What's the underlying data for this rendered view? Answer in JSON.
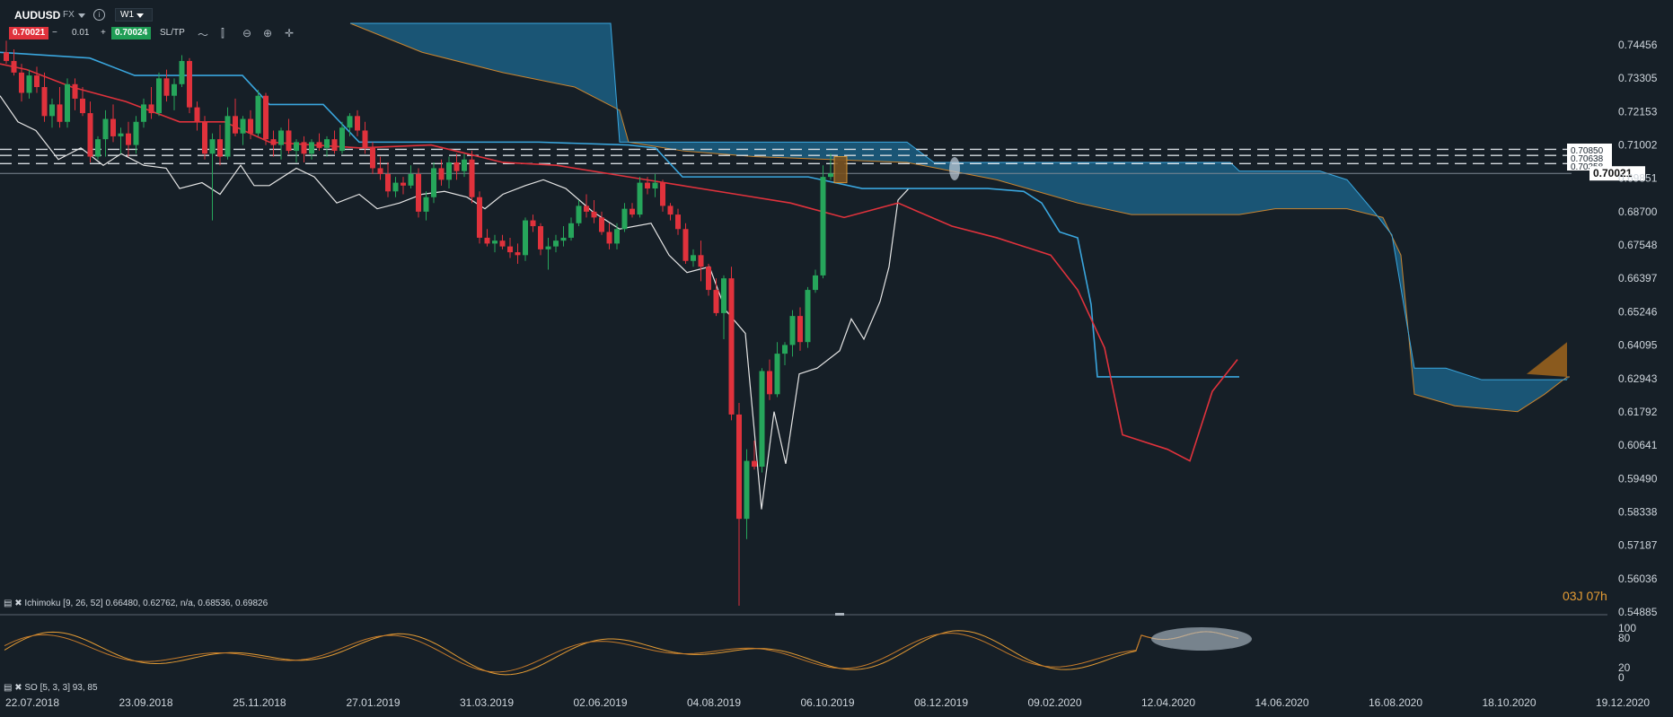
{
  "toolbar": {
    "symbol": "AUDUSD",
    "market": "FX",
    "info_icon": "info-icon",
    "timeframe": "W1",
    "sell_price": "0.70021",
    "minus": "−",
    "volume": "0.01",
    "plus": "+",
    "buy_price": "0.70024",
    "sltp_label": "SL/TP",
    "tools": [
      "line-chart-icon",
      "candles-icon",
      "zoom-out-icon",
      "zoom-in-icon",
      "crosshair-icon"
    ],
    "sell_color": "#e0323c",
    "buy_color": "#1f9d55"
  },
  "indicators": {
    "ichimoku_label": "Ichimoku [9, 26, 52] 0.66480, 0.62762, n/a, 0.68536, 0.69826",
    "so_label": "SO [5, 3, 3] 93, 85"
  },
  "countdown": "03J 07h",
  "chart_data": {
    "type": "candlestick",
    "symbol": "AUDUSD",
    "timeframe": "W1",
    "y_ticks": [
      "0.74456",
      "0.73305",
      "0.72153",
      "0.71002",
      "0.69851",
      "0.68700",
      "0.67548",
      "0.66397",
      "0.65246",
      "0.64095",
      "0.62943",
      "0.61792",
      "0.60641",
      "0.59490",
      "0.58338",
      "0.57187",
      "0.56036",
      "0.54885"
    ],
    "y_range": [
      0.54885,
      0.74456
    ],
    "x_ticks": [
      "22.07.2018",
      "23.09.2018",
      "25.11.2018",
      "27.01.2019",
      "31.03.2019",
      "02.06.2019",
      "04.08.2019",
      "06.10.2019",
      "08.12.2019",
      "09.02.2020",
      "12.04.2020",
      "14.06.2020",
      "16.08.2020",
      "18.10.2020",
      "19.12.2020"
    ],
    "current_price": "0.70021",
    "price_labels": [
      "0.70850",
      "0.70638",
      "0.70358"
    ],
    "colors": {
      "up": "#26a65b",
      "down": "#e0323c",
      "tenkan": "#e0323c",
      "kijun": "#3aa6de",
      "chikou": "#e6e6e6",
      "cloud_bull": "#1b5f84",
      "cloud_bear": "#8a5a1e",
      "so_k": "#e39b34",
      "so_d": "#c47a2a"
    },
    "candles": [
      [
        0.742,
        0.746,
        0.738,
        0.739
      ],
      [
        0.739,
        0.743,
        0.734,
        0.735
      ],
      [
        0.735,
        0.738,
        0.725,
        0.728
      ],
      [
        0.728,
        0.736,
        0.726,
        0.734
      ],
      [
        0.734,
        0.737,
        0.728,
        0.73
      ],
      [
        0.73,
        0.735,
        0.718,
        0.72
      ],
      [
        0.72,
        0.726,
        0.716,
        0.724
      ],
      [
        0.724,
        0.73,
        0.716,
        0.718
      ],
      [
        0.718,
        0.733,
        0.716,
        0.731
      ],
      [
        0.731,
        0.733,
        0.722,
        0.726
      ],
      [
        0.726,
        0.73,
        0.72,
        0.721
      ],
      [
        0.721,
        0.725,
        0.704,
        0.706
      ],
      [
        0.706,
        0.713,
        0.705,
        0.712
      ],
      [
        0.712,
        0.722,
        0.706,
        0.719
      ],
      [
        0.719,
        0.724,
        0.711,
        0.713
      ],
      [
        0.713,
        0.716,
        0.707,
        0.714
      ],
      [
        0.714,
        0.718,
        0.706,
        0.71
      ],
      [
        0.71,
        0.72,
        0.707,
        0.718
      ],
      [
        0.718,
        0.726,
        0.716,
        0.724
      ],
      [
        0.724,
        0.73,
        0.719,
        0.721
      ],
      [
        0.721,
        0.735,
        0.72,
        0.733
      ],
      [
        0.733,
        0.736,
        0.725,
        0.727
      ],
      [
        0.727,
        0.733,
        0.722,
        0.731
      ],
      [
        0.731,
        0.741,
        0.73,
        0.739
      ],
      [
        0.739,
        0.74,
        0.721,
        0.723
      ],
      [
        0.723,
        0.725,
        0.715,
        0.718
      ],
      [
        0.718,
        0.72,
        0.705,
        0.707
      ],
      [
        0.707,
        0.714,
        0.684,
        0.712
      ],
      [
        0.712,
        0.717,
        0.703,
        0.706
      ],
      [
        0.706,
        0.723,
        0.705,
        0.72
      ],
      [
        0.72,
        0.726,
        0.713,
        0.714
      ],
      [
        0.714,
        0.72,
        0.71,
        0.719
      ],
      [
        0.719,
        0.722,
        0.712,
        0.714
      ],
      [
        0.714,
        0.729,
        0.713,
        0.727
      ],
      [
        0.727,
        0.728,
        0.71,
        0.712
      ],
      [
        0.712,
        0.715,
        0.706,
        0.71
      ],
      [
        0.71,
        0.716,
        0.705,
        0.715
      ],
      [
        0.715,
        0.719,
        0.707,
        0.708
      ],
      [
        0.708,
        0.712,
        0.704,
        0.711
      ],
      [
        0.711,
        0.713,
        0.704,
        0.707
      ],
      [
        0.707,
        0.712,
        0.705,
        0.711
      ],
      [
        0.711,
        0.714,
        0.708,
        0.709
      ],
      [
        0.709,
        0.713,
        0.706,
        0.712
      ],
      [
        0.712,
        0.715,
        0.707,
        0.708
      ],
      [
        0.708,
        0.718,
        0.707,
        0.716
      ],
      [
        0.716,
        0.721,
        0.713,
        0.72
      ],
      [
        0.72,
        0.722,
        0.713,
        0.715
      ],
      [
        0.715,
        0.718,
        0.707,
        0.709
      ],
      [
        0.709,
        0.711,
        0.7,
        0.702
      ],
      [
        0.702,
        0.706,
        0.698,
        0.7
      ],
      [
        0.7,
        0.704,
        0.692,
        0.694
      ],
      [
        0.694,
        0.699,
        0.692,
        0.697
      ],
      [
        0.697,
        0.699,
        0.693,
        0.696
      ],
      [
        0.696,
        0.703,
        0.695,
        0.7
      ],
      [
        0.7,
        0.702,
        0.685,
        0.687
      ],
      [
        0.687,
        0.694,
        0.684,
        0.692
      ],
      [
        0.692,
        0.704,
        0.69,
        0.702
      ],
      [
        0.702,
        0.705,
        0.696,
        0.698
      ],
      [
        0.698,
        0.706,
        0.695,
        0.704
      ],
      [
        0.704,
        0.707,
        0.698,
        0.701
      ],
      [
        0.701,
        0.707,
        0.699,
        0.705
      ],
      [
        0.705,
        0.708,
        0.69,
        0.692
      ],
      [
        0.692,
        0.694,
        0.676,
        0.678
      ],
      [
        0.678,
        0.681,
        0.675,
        0.676
      ],
      [
        0.676,
        0.679,
        0.673,
        0.677
      ],
      [
        0.677,
        0.679,
        0.674,
        0.675
      ],
      [
        0.675,
        0.678,
        0.671,
        0.673
      ],
      [
        0.673,
        0.676,
        0.669,
        0.672
      ],
      [
        0.672,
        0.685,
        0.67,
        0.684
      ],
      [
        0.684,
        0.686,
        0.68,
        0.682
      ],
      [
        0.682,
        0.683,
        0.672,
        0.674
      ],
      [
        0.674,
        0.678,
        0.667,
        0.675
      ],
      [
        0.675,
        0.679,
        0.673,
        0.677
      ],
      [
        0.677,
        0.682,
        0.675,
        0.678
      ],
      [
        0.678,
        0.685,
        0.677,
        0.683
      ],
      [
        0.683,
        0.691,
        0.682,
        0.689
      ],
      [
        0.689,
        0.693,
        0.685,
        0.687
      ],
      [
        0.687,
        0.691,
        0.683,
        0.685
      ],
      [
        0.685,
        0.687,
        0.679,
        0.68
      ],
      [
        0.68,
        0.683,
        0.674,
        0.676
      ],
      [
        0.676,
        0.683,
        0.674,
        0.681
      ],
      [
        0.681,
        0.69,
        0.68,
        0.688
      ],
      [
        0.688,
        0.69,
        0.685,
        0.686
      ],
      [
        0.686,
        0.699,
        0.685,
        0.697
      ],
      [
        0.697,
        0.699,
        0.693,
        0.695
      ],
      [
        0.695,
        0.7,
        0.692,
        0.697
      ],
      [
        0.697,
        0.698,
        0.687,
        0.689
      ],
      [
        0.689,
        0.69,
        0.684,
        0.686
      ],
      [
        0.686,
        0.688,
        0.679,
        0.681
      ],
      [
        0.681,
        0.683,
        0.669,
        0.67
      ],
      [
        0.67,
        0.674,
        0.668,
        0.672
      ],
      [
        0.672,
        0.677,
        0.663,
        0.668
      ],
      [
        0.668,
        0.669,
        0.658,
        0.66
      ],
      [
        0.66,
        0.664,
        0.651,
        0.652
      ],
      [
        0.652,
        0.665,
        0.643,
        0.664
      ],
      [
        0.664,
        0.668,
        0.615,
        0.617
      ],
      [
        0.617,
        0.621,
        0.551,
        0.581
      ],
      [
        0.581,
        0.605,
        0.574,
        0.601
      ],
      [
        0.601,
        0.608,
        0.598,
        0.599
      ],
      [
        0.599,
        0.633,
        0.597,
        0.632
      ],
      [
        0.632,
        0.636,
        0.622,
        0.624
      ],
      [
        0.624,
        0.642,
        0.623,
        0.638
      ],
      [
        0.638,
        0.642,
        0.634,
        0.641
      ],
      [
        0.641,
        0.653,
        0.637,
        0.651
      ],
      [
        0.651,
        0.654,
        0.639,
        0.642
      ],
      [
        0.642,
        0.661,
        0.64,
        0.66
      ],
      [
        0.66,
        0.667,
        0.659,
        0.665
      ],
      [
        0.665,
        0.703,
        0.664,
        0.699
      ],
      [
        0.699,
        0.707,
        0.698,
        0.7002
      ]
    ]
  }
}
